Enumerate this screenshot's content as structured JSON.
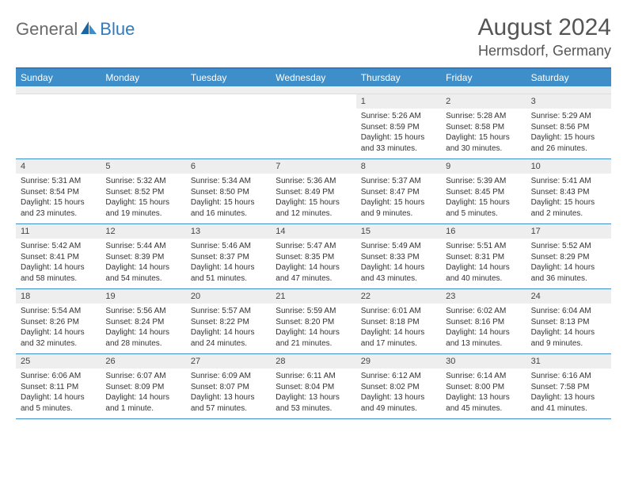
{
  "brand": {
    "general": "General",
    "blue": "Blue"
  },
  "title": "August 2024",
  "location": "Hermsdorf, Germany",
  "colors": {
    "header_bar": "#3d8ec9",
    "accent_border": "#2f7bbf",
    "daynum_bg": "#eeeeee",
    "text": "#333333",
    "title_text": "#555555",
    "logo_gray": "#6a6a6a",
    "logo_blue": "#2f7bbf",
    "white": "#ffffff"
  },
  "weekdays": [
    "Sunday",
    "Monday",
    "Tuesday",
    "Wednesday",
    "Thursday",
    "Friday",
    "Saturday"
  ],
  "weeks": [
    [
      {
        "n": "",
        "sunrise": "",
        "sunset": "",
        "daylight": ""
      },
      {
        "n": "",
        "sunrise": "",
        "sunset": "",
        "daylight": ""
      },
      {
        "n": "",
        "sunrise": "",
        "sunset": "",
        "daylight": ""
      },
      {
        "n": "",
        "sunrise": "",
        "sunset": "",
        "daylight": ""
      },
      {
        "n": "1",
        "sunrise": "Sunrise: 5:26 AM",
        "sunset": "Sunset: 8:59 PM",
        "daylight": "Daylight: 15 hours and 33 minutes."
      },
      {
        "n": "2",
        "sunrise": "Sunrise: 5:28 AM",
        "sunset": "Sunset: 8:58 PM",
        "daylight": "Daylight: 15 hours and 30 minutes."
      },
      {
        "n": "3",
        "sunrise": "Sunrise: 5:29 AM",
        "sunset": "Sunset: 8:56 PM",
        "daylight": "Daylight: 15 hours and 26 minutes."
      }
    ],
    [
      {
        "n": "4",
        "sunrise": "Sunrise: 5:31 AM",
        "sunset": "Sunset: 8:54 PM",
        "daylight": "Daylight: 15 hours and 23 minutes."
      },
      {
        "n": "5",
        "sunrise": "Sunrise: 5:32 AM",
        "sunset": "Sunset: 8:52 PM",
        "daylight": "Daylight: 15 hours and 19 minutes."
      },
      {
        "n": "6",
        "sunrise": "Sunrise: 5:34 AM",
        "sunset": "Sunset: 8:50 PM",
        "daylight": "Daylight: 15 hours and 16 minutes."
      },
      {
        "n": "7",
        "sunrise": "Sunrise: 5:36 AM",
        "sunset": "Sunset: 8:49 PM",
        "daylight": "Daylight: 15 hours and 12 minutes."
      },
      {
        "n": "8",
        "sunrise": "Sunrise: 5:37 AM",
        "sunset": "Sunset: 8:47 PM",
        "daylight": "Daylight: 15 hours and 9 minutes."
      },
      {
        "n": "9",
        "sunrise": "Sunrise: 5:39 AM",
        "sunset": "Sunset: 8:45 PM",
        "daylight": "Daylight: 15 hours and 5 minutes."
      },
      {
        "n": "10",
        "sunrise": "Sunrise: 5:41 AM",
        "sunset": "Sunset: 8:43 PM",
        "daylight": "Daylight: 15 hours and 2 minutes."
      }
    ],
    [
      {
        "n": "11",
        "sunrise": "Sunrise: 5:42 AM",
        "sunset": "Sunset: 8:41 PM",
        "daylight": "Daylight: 14 hours and 58 minutes."
      },
      {
        "n": "12",
        "sunrise": "Sunrise: 5:44 AM",
        "sunset": "Sunset: 8:39 PM",
        "daylight": "Daylight: 14 hours and 54 minutes."
      },
      {
        "n": "13",
        "sunrise": "Sunrise: 5:46 AM",
        "sunset": "Sunset: 8:37 PM",
        "daylight": "Daylight: 14 hours and 51 minutes."
      },
      {
        "n": "14",
        "sunrise": "Sunrise: 5:47 AM",
        "sunset": "Sunset: 8:35 PM",
        "daylight": "Daylight: 14 hours and 47 minutes."
      },
      {
        "n": "15",
        "sunrise": "Sunrise: 5:49 AM",
        "sunset": "Sunset: 8:33 PM",
        "daylight": "Daylight: 14 hours and 43 minutes."
      },
      {
        "n": "16",
        "sunrise": "Sunrise: 5:51 AM",
        "sunset": "Sunset: 8:31 PM",
        "daylight": "Daylight: 14 hours and 40 minutes."
      },
      {
        "n": "17",
        "sunrise": "Sunrise: 5:52 AM",
        "sunset": "Sunset: 8:29 PM",
        "daylight": "Daylight: 14 hours and 36 minutes."
      }
    ],
    [
      {
        "n": "18",
        "sunrise": "Sunrise: 5:54 AM",
        "sunset": "Sunset: 8:26 PM",
        "daylight": "Daylight: 14 hours and 32 minutes."
      },
      {
        "n": "19",
        "sunrise": "Sunrise: 5:56 AM",
        "sunset": "Sunset: 8:24 PM",
        "daylight": "Daylight: 14 hours and 28 minutes."
      },
      {
        "n": "20",
        "sunrise": "Sunrise: 5:57 AM",
        "sunset": "Sunset: 8:22 PM",
        "daylight": "Daylight: 14 hours and 24 minutes."
      },
      {
        "n": "21",
        "sunrise": "Sunrise: 5:59 AM",
        "sunset": "Sunset: 8:20 PM",
        "daylight": "Daylight: 14 hours and 21 minutes."
      },
      {
        "n": "22",
        "sunrise": "Sunrise: 6:01 AM",
        "sunset": "Sunset: 8:18 PM",
        "daylight": "Daylight: 14 hours and 17 minutes."
      },
      {
        "n": "23",
        "sunrise": "Sunrise: 6:02 AM",
        "sunset": "Sunset: 8:16 PM",
        "daylight": "Daylight: 14 hours and 13 minutes."
      },
      {
        "n": "24",
        "sunrise": "Sunrise: 6:04 AM",
        "sunset": "Sunset: 8:13 PM",
        "daylight": "Daylight: 14 hours and 9 minutes."
      }
    ],
    [
      {
        "n": "25",
        "sunrise": "Sunrise: 6:06 AM",
        "sunset": "Sunset: 8:11 PM",
        "daylight": "Daylight: 14 hours and 5 minutes."
      },
      {
        "n": "26",
        "sunrise": "Sunrise: 6:07 AM",
        "sunset": "Sunset: 8:09 PM",
        "daylight": "Daylight: 14 hours and 1 minute."
      },
      {
        "n": "27",
        "sunrise": "Sunrise: 6:09 AM",
        "sunset": "Sunset: 8:07 PM",
        "daylight": "Daylight: 13 hours and 57 minutes."
      },
      {
        "n": "28",
        "sunrise": "Sunrise: 6:11 AM",
        "sunset": "Sunset: 8:04 PM",
        "daylight": "Daylight: 13 hours and 53 minutes."
      },
      {
        "n": "29",
        "sunrise": "Sunrise: 6:12 AM",
        "sunset": "Sunset: 8:02 PM",
        "daylight": "Daylight: 13 hours and 49 minutes."
      },
      {
        "n": "30",
        "sunrise": "Sunrise: 6:14 AM",
        "sunset": "Sunset: 8:00 PM",
        "daylight": "Daylight: 13 hours and 45 minutes."
      },
      {
        "n": "31",
        "sunrise": "Sunrise: 6:16 AM",
        "sunset": "Sunset: 7:58 PM",
        "daylight": "Daylight: 13 hours and 41 minutes."
      }
    ]
  ]
}
